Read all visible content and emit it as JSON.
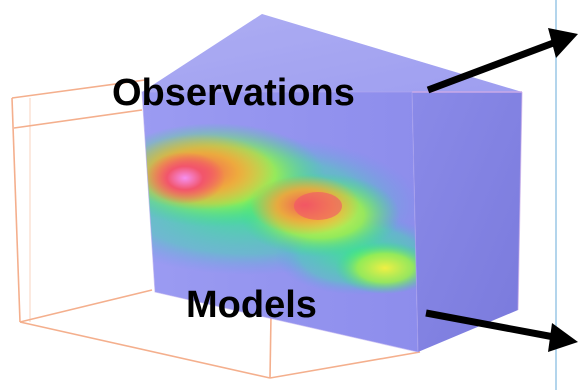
{
  "labels": {
    "observations": "Observations",
    "models": "Models"
  },
  "colors": {
    "volume_base": "#8f8ff0",
    "volume_side": "#7d7ddf",
    "wireframe": "#f3a27a",
    "heat_low": "#32e08a",
    "heat_mid": "#eef040",
    "heat_high": "#f2546a",
    "heat_peak": "#f28df0",
    "arrow": "#000000",
    "divider": "#9ac7e6"
  }
}
